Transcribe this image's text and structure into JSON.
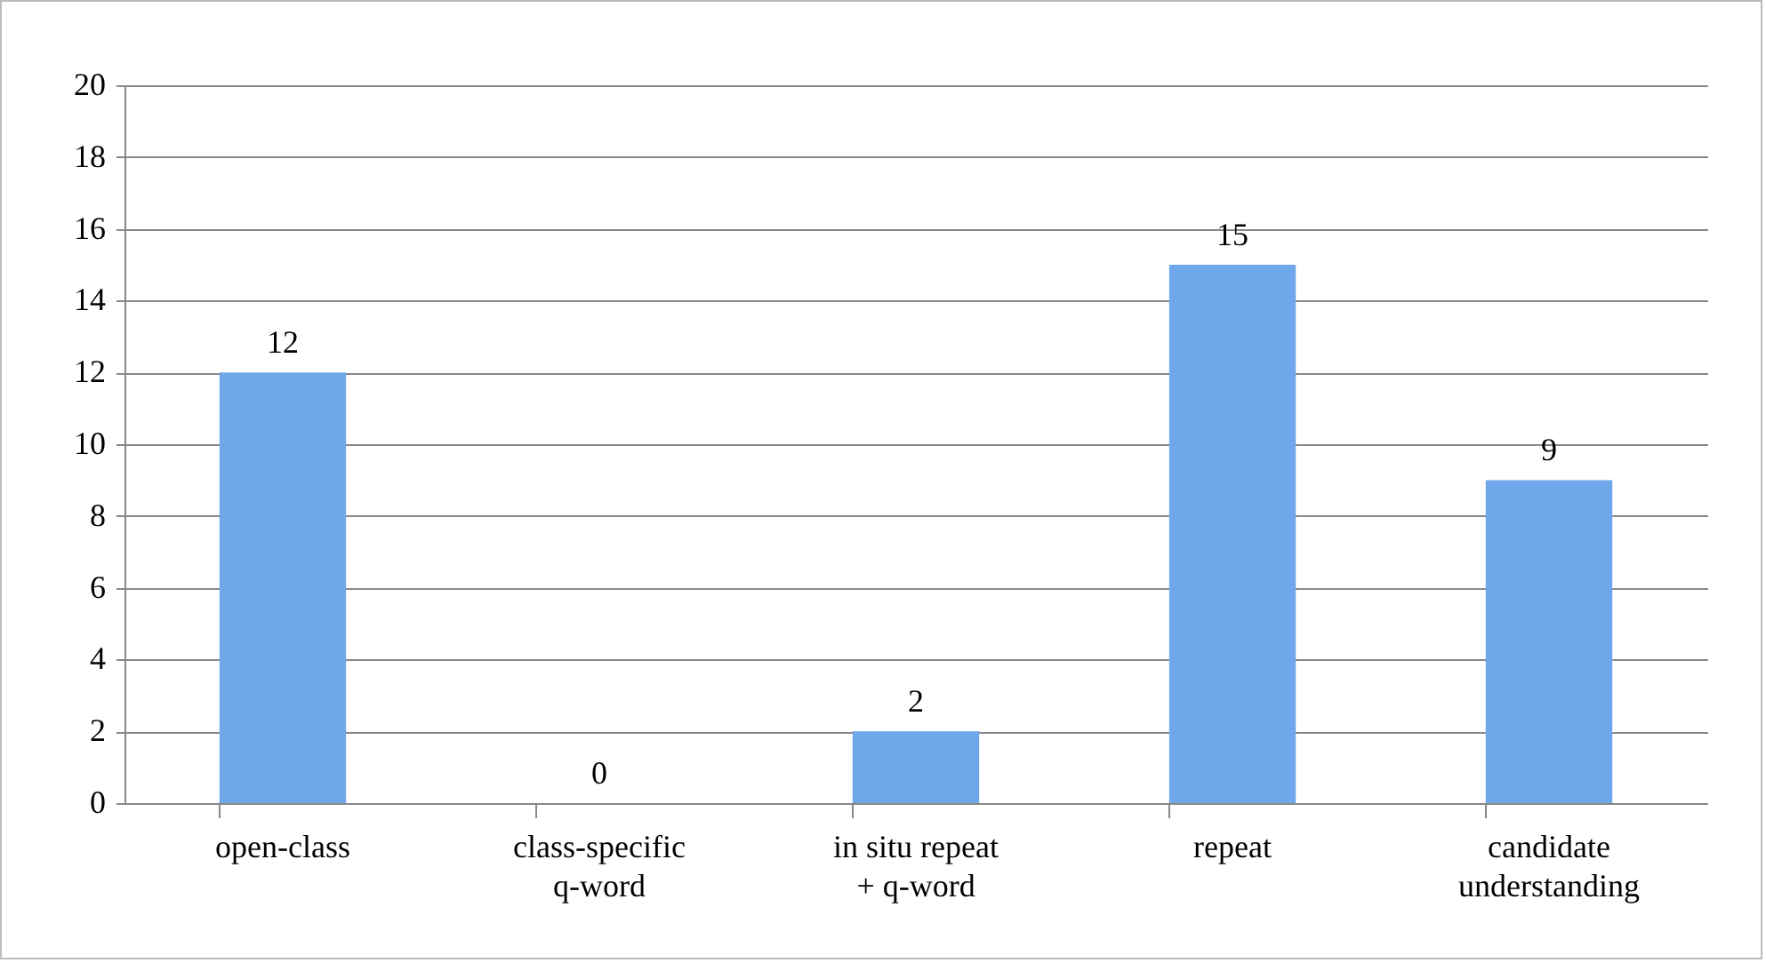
{
  "chart_data": {
    "type": "bar",
    "categories": [
      "open-class",
      "class-specific q-word",
      "in situ repeat + q-word",
      "repeat",
      "candidate understanding"
    ],
    "values": [
      12,
      0,
      2,
      15,
      9
    ],
    "color": "#6fa8ea",
    "ylim": [
      0,
      20
    ],
    "yticks": [
      0,
      2,
      4,
      6,
      8,
      10,
      12,
      14,
      16,
      18,
      20
    ],
    "grid": "y",
    "data_labels": true
  }
}
